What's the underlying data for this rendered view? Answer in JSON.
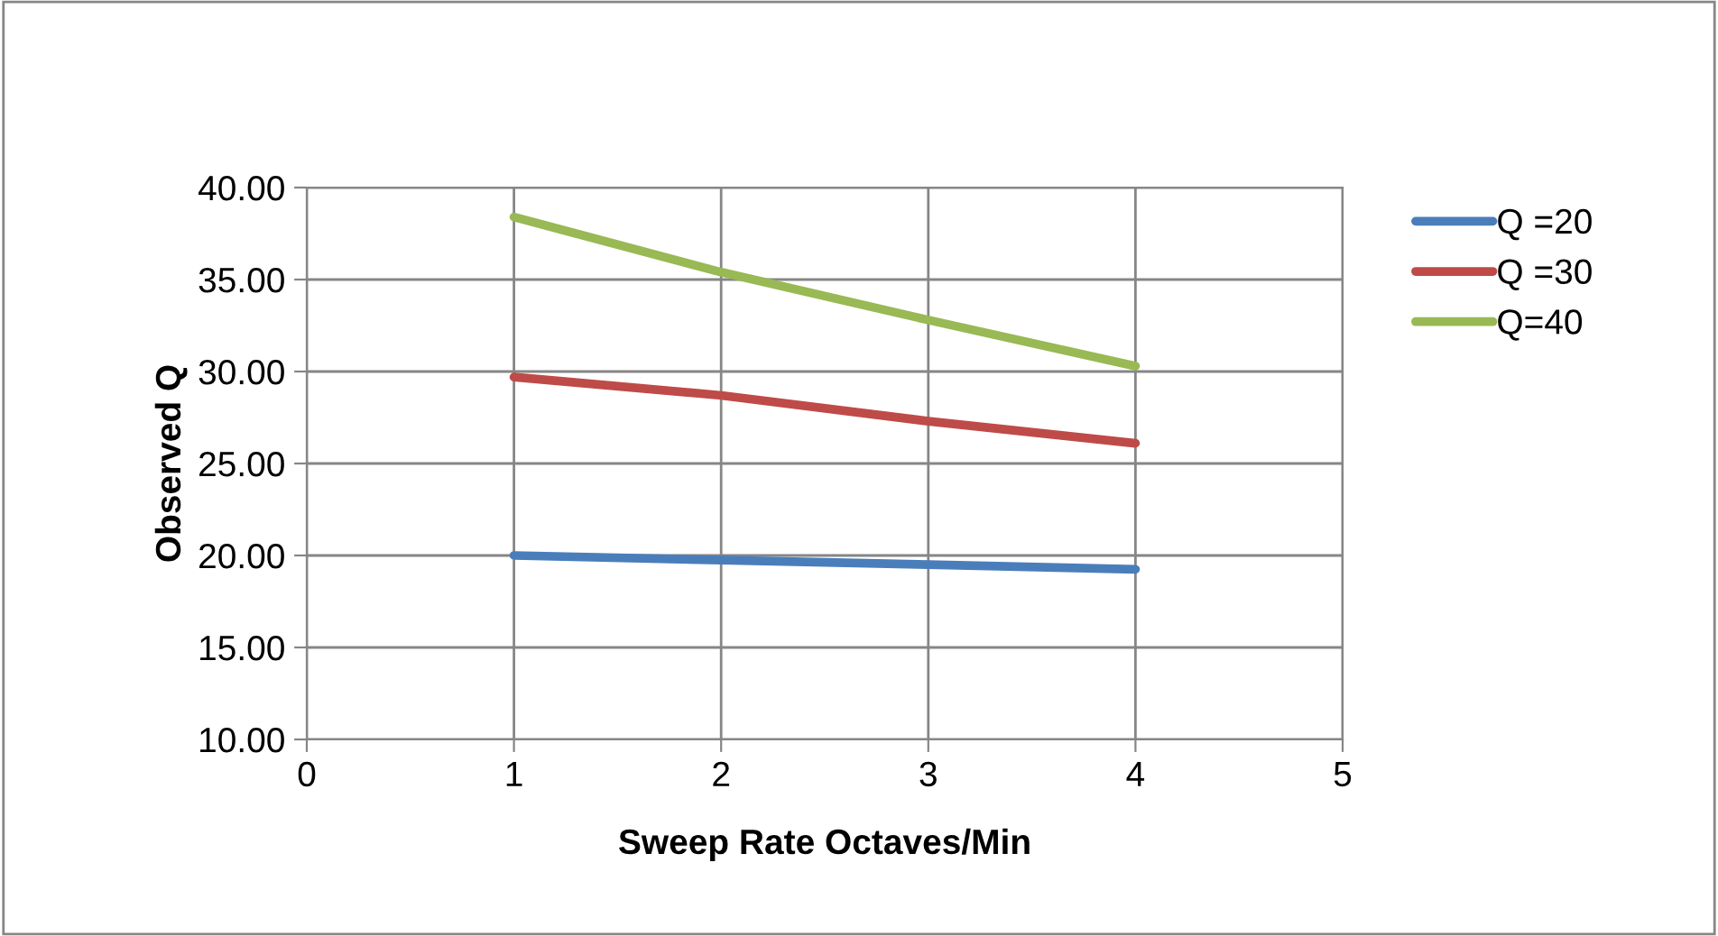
{
  "chart_data": {
    "type": "line",
    "xlabel": "Sweep Rate Octaves/Min",
    "ylabel": "Observed Q",
    "x": [
      1,
      2,
      3,
      4
    ],
    "series": [
      {
        "name": "Q =20",
        "color": "#4a7ebb",
        "values": [
          20.0,
          19.75,
          19.5,
          19.25
        ]
      },
      {
        "name": "Q =30",
        "color": "#be4b48",
        "values": [
          29.7,
          28.7,
          27.3,
          26.1
        ]
      },
      {
        "name": "Q=40",
        "color": "#98b954",
        "values": [
          38.4,
          35.4,
          32.8,
          30.3
        ]
      }
    ],
    "xlim": [
      0,
      5
    ],
    "xticks": [
      0,
      1,
      2,
      3,
      4,
      5
    ],
    "ylim": [
      10,
      40
    ],
    "yticks": [
      {
        "value": 10,
        "label": "10.00"
      },
      {
        "value": 15,
        "label": "15.00"
      },
      {
        "value": 20,
        "label": "20.00"
      },
      {
        "value": 25,
        "label": "25.00"
      },
      {
        "value": 30,
        "label": "30.00"
      },
      {
        "value": 35,
        "label": "35.00"
      },
      {
        "value": 40,
        "label": "40.00"
      }
    ],
    "grid": true,
    "legend": "right",
    "marker": "none",
    "line_style": "solid"
  }
}
